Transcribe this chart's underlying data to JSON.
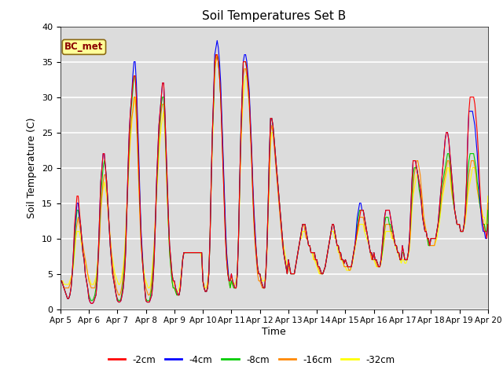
{
  "title": "Soil Temperatures Set B",
  "xlabel": "Time",
  "ylabel": "Soil Temperature (C)",
  "ylim": [
    0,
    40
  ],
  "xlim": [
    0,
    360
  ],
  "background_color": "#dcdcdc",
  "annotation_text": "BC_met",
  "annotation_color": "#8b0000",
  "annotation_bg": "#ffff99",
  "series_colors": [
    "#ff0000",
    "#0000ff",
    "#00cc00",
    "#ff8800",
    "#ffff00"
  ],
  "series_labels": [
    "-2cm",
    "-4cm",
    "-8cm",
    "-16cm",
    "-32cm"
  ],
  "tick_labels": [
    "Apr 5",
    "Apr 6",
    "Apr 7",
    "Apr 8",
    "Apr 9",
    "Apr 10",
    "Apr 11",
    "Apr 12",
    "Apr 13",
    "Apr 14",
    "Apr 15",
    "Apr 16",
    "Apr 17",
    "Apr 18",
    "Apr 19",
    "Apr 20"
  ],
  "tick_positions": [
    0,
    24,
    48,
    72,
    96,
    120,
    144,
    168,
    192,
    216,
    240,
    264,
    288,
    312,
    336,
    360
  ],
  "yticks": [
    0,
    5,
    10,
    15,
    20,
    25,
    30,
    35,
    40
  ]
}
